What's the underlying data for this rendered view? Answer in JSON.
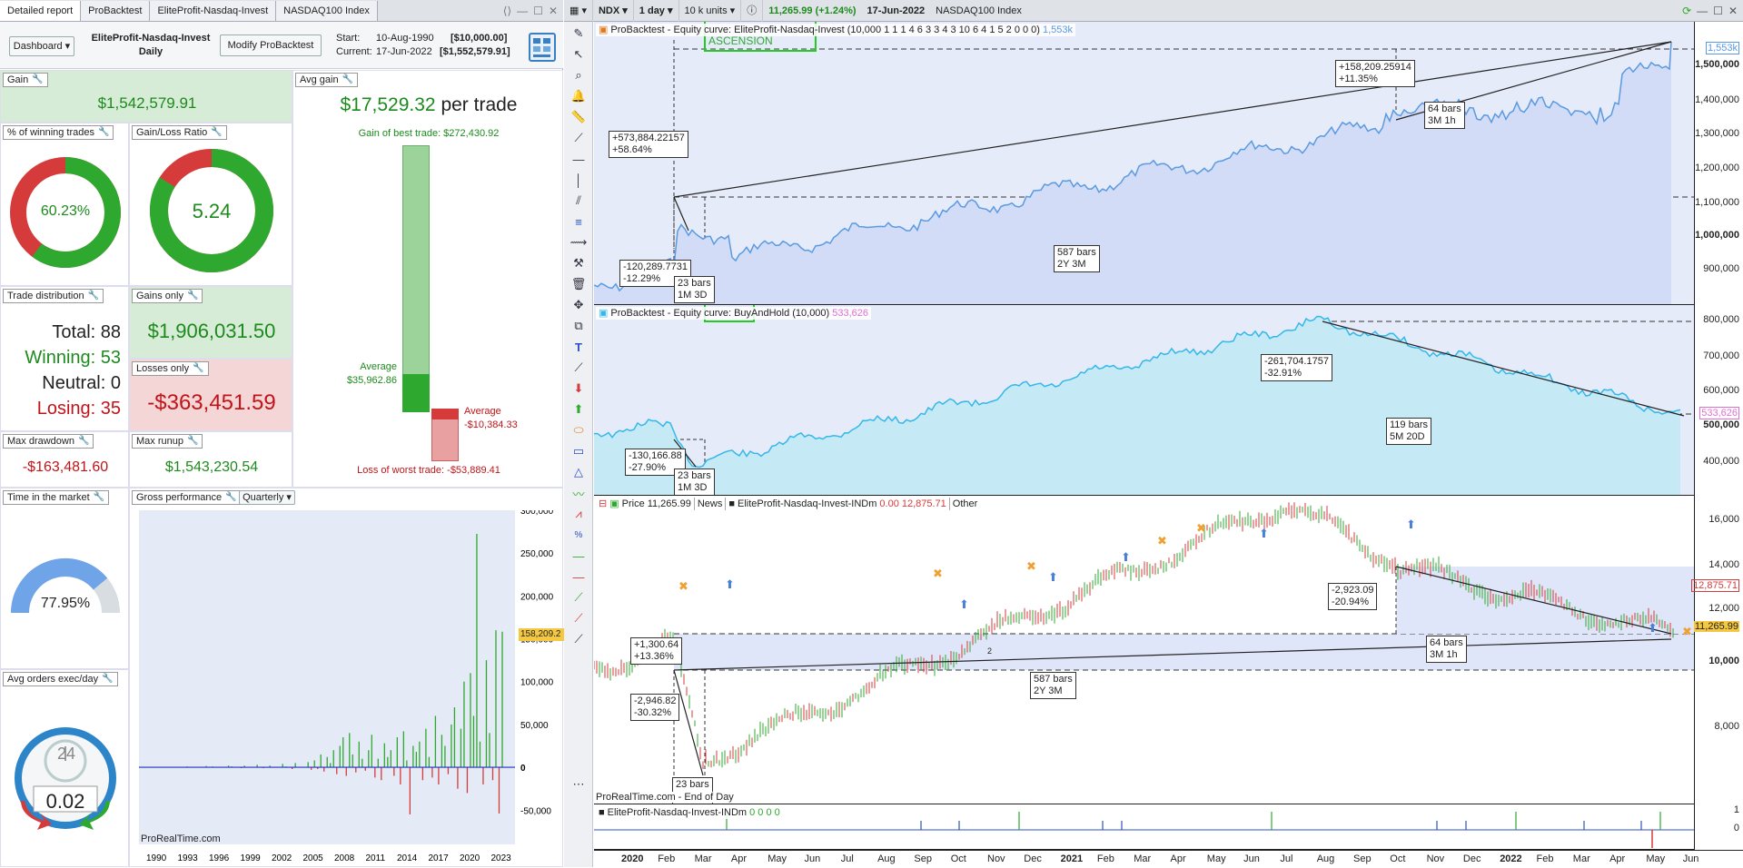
{
  "left_window": {
    "tabs": [
      "Detailed report",
      "ProBacktest",
      "EliteProfit-Nasdaq-Invest",
      "NASDAQ100 Index"
    ],
    "dashboard_button": "Dashboard",
    "system_name": "EliteProfit-Nasdaq-Invest",
    "timeframe": "Daily",
    "modify_button": "Modify ProBacktest",
    "start_label": "Start:",
    "start_date": "10-Aug-1990",
    "start_capital": "[$10,000.00]",
    "current_label": "Current:",
    "current_date": "17-Jun-2022",
    "current_capital": "[$1,552,579.91]",
    "gain": {
      "title": "Gain",
      "value": "$1,542,579.91"
    },
    "avg_gain": {
      "title": "Avg gain",
      "value": "$17,529.32",
      "unit": "per trade",
      "best_trade": "Gain of best trade: $272,430.92",
      "avg_win_label": "Average",
      "avg_win_value": "$35,962.86",
      "avg_loss_label": "Average",
      "avg_loss_value": "-$10,384.33",
      "worst_trade": "Loss of worst trade: -$53,889.41"
    },
    "winning_pct": {
      "title": "% of winning trades",
      "value": "60.23%",
      "fraction": 0.6023
    },
    "gain_loss_ratio": {
      "title": "Gain/Loss Ratio",
      "value": "5.24",
      "fraction": 0.84
    },
    "trade_distribution": {
      "title": "Trade distribution",
      "total": "Total: 88",
      "winning": "Winning: 53",
      "neutral": "Neutral: 0",
      "losing": "Losing: 35"
    },
    "gains_only": {
      "title": "Gains only",
      "value": "$1,906,031.50"
    },
    "losses_only": {
      "title": "Losses only",
      "value": "-$363,451.59"
    },
    "max_drawdown": {
      "title": "Max drawdown",
      "value": "-$163,481.60"
    },
    "max_runup": {
      "title": "Max runup",
      "value": "$1,543,230.54"
    },
    "time_in_market": {
      "title": "Time in the market",
      "value": "77.95%",
      "fraction": 0.7795
    },
    "avg_orders": {
      "title": "Avg orders exec/day",
      "value": "0.02",
      "clock": "24"
    },
    "gross_performance": {
      "title": "Gross performance",
      "period": "Quarterly",
      "credit": "ProRealTime.com",
      "last_label": "158,209.2"
    }
  },
  "gross_chart_data": {
    "type": "bar",
    "x_ticks": [
      "1990",
      "1993",
      "1996",
      "1999",
      "2002",
      "2005",
      "2008",
      "2011",
      "2014",
      "2017",
      "2020",
      "2023"
    ],
    "y_ticks": [
      "300,000",
      "250,000",
      "200,000",
      "150,000",
      "100,000",
      "50,000",
      "0",
      "-50,000"
    ],
    "ylim": [
      -90000,
      300000
    ],
    "values": [
      0,
      0,
      0,
      0,
      0,
      0,
      1000,
      0,
      0,
      0,
      0,
      0,
      1500,
      0,
      1000,
      0,
      0,
      0,
      0,
      2000,
      1000,
      0,
      0,
      -1000,
      2000,
      0,
      0,
      0,
      3000,
      0,
      -1000,
      0,
      2000,
      0,
      0,
      0,
      4000,
      1000,
      0,
      -2000,
      5000,
      0,
      0,
      0,
      6000,
      -3000,
      8000,
      -2000,
      15000,
      -5000,
      12000,
      5000,
      20000,
      -8000,
      25000,
      35000,
      -10000,
      40000,
      15000,
      -6000,
      30000,
      10000,
      -4000,
      20000,
      38000,
      -12000,
      10000,
      -15000,
      28000,
      12000,
      20000,
      -10000,
      35000,
      -20000,
      42000,
      8000,
      -55000,
      25000,
      18000,
      30000,
      -15000,
      45000,
      12000,
      -12000,
      60000,
      -20000,
      38000,
      25000,
      -8000,
      50000,
      70000,
      -25000,
      45000,
      100000,
      -30000,
      110000,
      60000,
      272430,
      30000,
      -20000,
      125000,
      40000,
      -15000,
      160000,
      -53889,
      158209
    ]
  },
  "right_window": {
    "toolbar": {
      "symbol": "NDX",
      "timeframe": "1 day",
      "units": "10 k units",
      "price": "11,265.99",
      "change": "(+1.24%)",
      "date": "17-Jun-2022",
      "instrument": "NASDAQ100 Index"
    },
    "pane1": {
      "legend_prefix": "ProBacktest - Equity curve:",
      "system": "EliteProfit-Nasdaq-Invest",
      "params": "(10,000 1 1 1 4 6 3 3 4 3 10 6 4 1 5 2 0 0 0)",
      "last": "1,553k",
      "watermark": "ASCENSION",
      "axis": [
        "1,553k",
        "1,500,000",
        "1,400,000",
        "1,300,000",
        "1,200,000",
        "1,100,000",
        "1,000,000",
        "900,000"
      ],
      "callouts": [
        "+573,884.22157\n+58.64%",
        "-120,289.7731\n-12.29%",
        "23 bars\n1M 3D",
        "587 bars\n2Y 3M",
        "+158,209.25914\n+11.35%",
        "64 bars\n3M 1h"
      ]
    },
    "pane2": {
      "legend_prefix": "ProBacktest - Equity curve:",
      "system": "BuyAndHold",
      "params": "(10,000)",
      "last": "533,626",
      "axis": [
        "800,000",
        "700,000",
        "600,000",
        "533,626",
        "500,000",
        "400,000"
      ],
      "callouts": [
        "-130,166.88\n-27.90%",
        "23 bars\n1M 3D",
        "-261,704.1757\n-32.91%",
        "119 bars\n5M 20D"
      ]
    },
    "pane3": {
      "price_label": "Price",
      "price_value": "11,265.99",
      "news_label": "News",
      "indicator": "EliteProfit-Nasdaq-Invest-INDm",
      "ind_values": "0.00",
      "ind_value2": "12,875.71",
      "other_label": "Other",
      "axis": [
        "16,000",
        "14,000",
        "12,875.71",
        "12,000",
        "11,265.99",
        "10,000",
        "8,000"
      ],
      "callouts": [
        "+1,300.64\n+13.36%",
        "-2,946.82\n-30.32%",
        "23 bars\n1M 3D",
        "587 bars\n2Y 3M",
        "-2,923.09\n-20.94%",
        "64 bars\n3M 1h"
      ],
      "credit": "ProRealTime.com - End of Day",
      "small_mark": "2"
    },
    "pane4": {
      "indicator": "EliteProfit-Nasdaq-Invest-INDm",
      "values": "0 0 0 0",
      "axis": [
        "1",
        "0"
      ]
    },
    "dates": [
      "2020",
      "Feb",
      "Mar",
      "Apr",
      "May",
      "Jun",
      "Jul",
      "Aug",
      "Sep",
      "Oct",
      "Nov",
      "Dec",
      "2021",
      "Feb",
      "Mar",
      "Apr",
      "May",
      "Jun",
      "Jul",
      "Aug",
      "Sep",
      "Oct",
      "Nov",
      "Dec",
      "2022",
      "Feb",
      "Mar",
      "Apr",
      "May",
      "Jun"
    ]
  },
  "colors": {
    "green": "#2fa82f",
    "red": "#d63b3b",
    "equity_orange": "#f0a030",
    "equity_blue": "#5a9ae0",
    "buyhold": "#33b8e8"
  }
}
